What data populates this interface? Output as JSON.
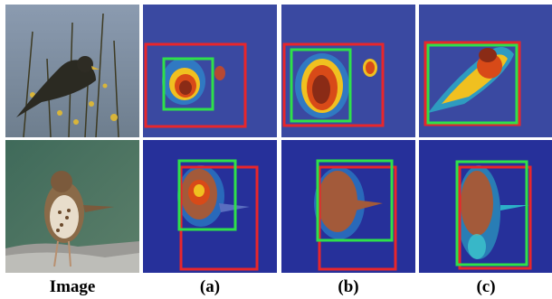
{
  "figure": {
    "column_labels": [
      "Image",
      "(a)",
      "(b)",
      "(c)"
    ],
    "rows": [
      {
        "subject": "bird-blackbird",
        "background": "#7f8ea0"
      },
      {
        "subject": "bird-sparrow",
        "background": "#4a6f5d"
      }
    ],
    "colors": {
      "ground_truth_box": "#e8262b",
      "predicted_box": "#2fe04a",
      "heatmap_base": "#27339a"
    }
  }
}
